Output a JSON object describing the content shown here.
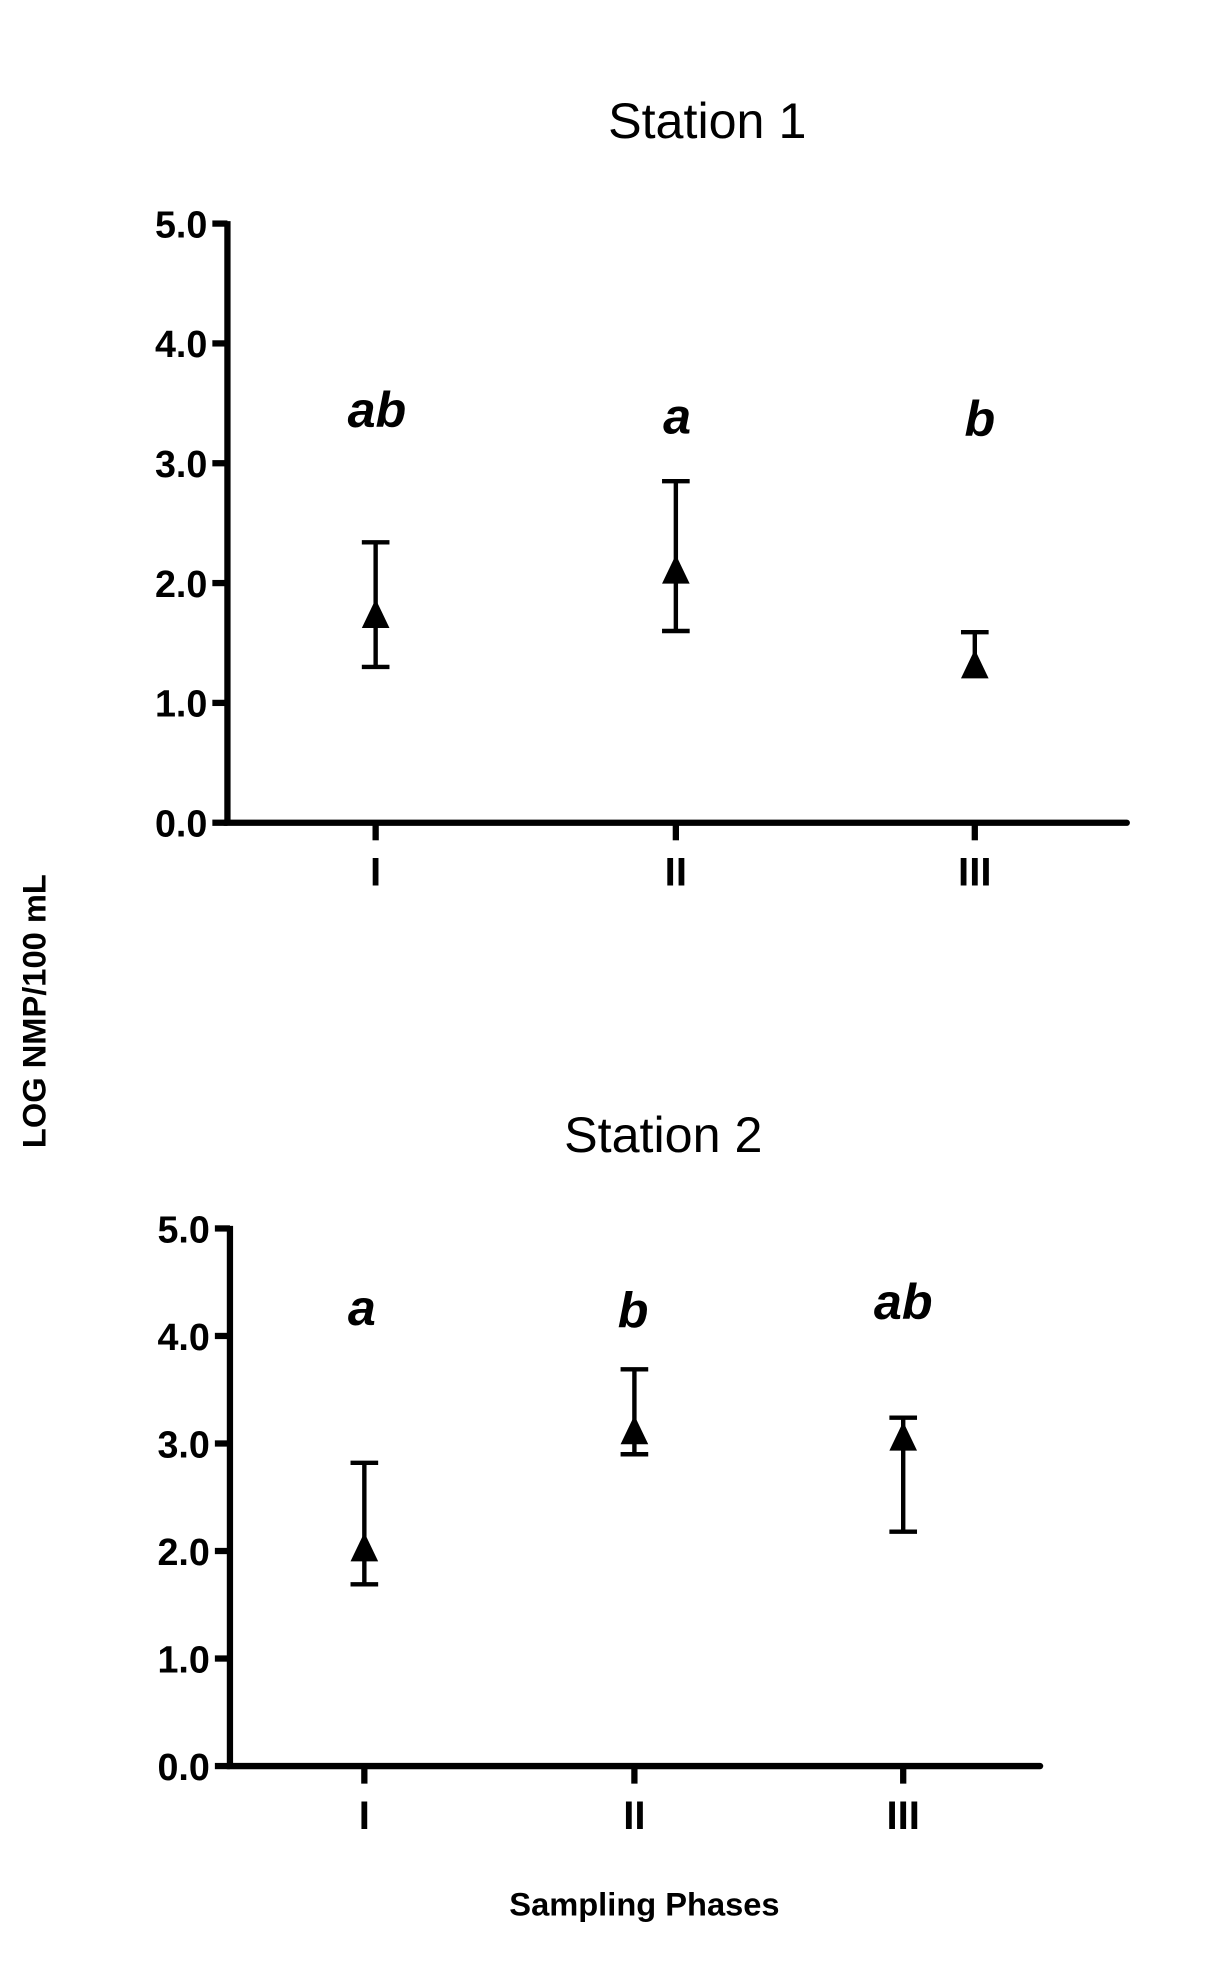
{
  "chart_data": [
    {
      "type": "scatter",
      "title": "Station 1",
      "categories": [
        "I",
        "II",
        "III"
      ],
      "ylim": [
        0,
        5
      ],
      "yticks": [
        "0.0",
        "1.0",
        "2.0",
        "3.0",
        "4.0",
        "5.0"
      ],
      "marker": "triangle",
      "grid": false,
      "series": [
        {
          "values": [
            1.73,
            2.1,
            1.31
          ],
          "error_upper": [
            2.34,
            2.85,
            1.59
          ],
          "error_lower": [
            1.3,
            1.6,
            null
          ]
        }
      ],
      "annotations": [
        "ab",
        "a",
        "b"
      ]
    },
    {
      "type": "scatter",
      "title": "Station 2",
      "categories": [
        "I",
        "II",
        "III"
      ],
      "ylim": [
        0,
        5
      ],
      "yticks": [
        "0.0",
        "1.0",
        "2.0",
        "3.0",
        "4.0",
        "5.0"
      ],
      "marker": "triangle",
      "grid": false,
      "series": [
        {
          "values": [
            2.02,
            3.11,
            3.05
          ],
          "error_upper": [
            2.82,
            3.69,
            3.24
          ],
          "error_lower": [
            1.69,
            2.9,
            2.18
          ]
        }
      ],
      "annotations": [
        "a",
        "b",
        "ab"
      ]
    }
  ],
  "ylabel": "LOG NMP/100 mL",
  "xlabel": "Sampling Phases",
  "colors": {
    "ink": "#000000",
    "background": "#ffffff"
  }
}
